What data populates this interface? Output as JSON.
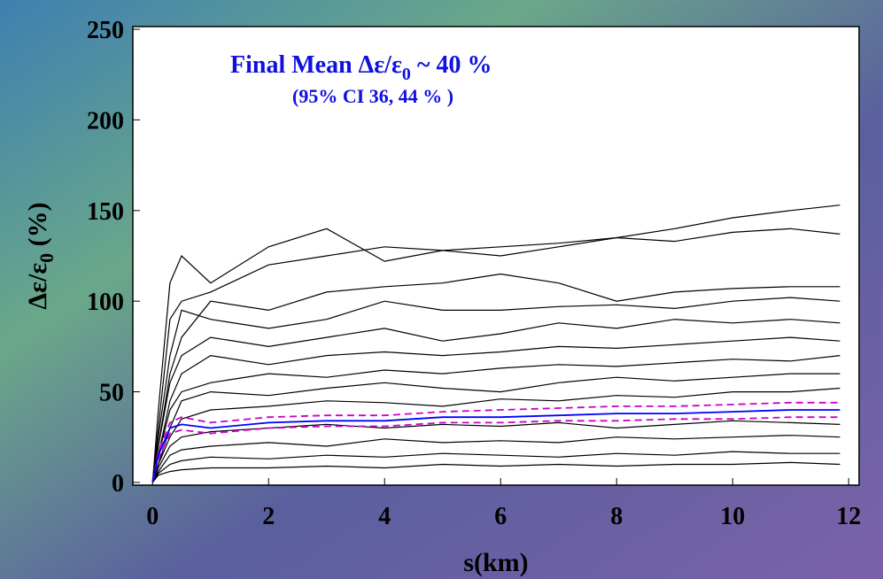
{
  "chart_data": {
    "type": "line",
    "annotations": [
      [
        "Final Mean Δε/ε",
        "0",
        " ~  40 %"
      ],
      [
        "(95% CI  36,  44 % )"
      ]
    ],
    "ylabel": [
      "Δε/ε",
      "0",
      " (%)"
    ],
    "xlabel": "s(km)",
    "x": [
      0,
      0.1,
      0.3,
      0.5,
      1,
      2,
      3,
      4,
      5,
      6,
      7,
      8,
      9,
      10,
      11,
      11.85
    ],
    "xlim": [
      -0.34,
      12.18
    ],
    "xticks": [
      0,
      2,
      4,
      6,
      8,
      10,
      12
    ],
    "ylim": [
      -1.5,
      251.5
    ],
    "yticks": [
      0,
      50,
      100,
      150,
      200,
      250
    ],
    "series": [
      {
        "color": "#000000",
        "values": [
          0,
          40,
          110,
          125,
          110,
          130,
          140,
          122,
          128,
          125,
          130,
          135,
          140,
          146,
          150,
          153
        ]
      },
      {
        "color": "#000000",
        "values": [
          0,
          30,
          90,
          100,
          105,
          120,
          125,
          130,
          128,
          130,
          132,
          135,
          133,
          138,
          140,
          137
        ]
      },
      {
        "color": "#000000",
        "values": [
          0,
          20,
          60,
          80,
          100,
          95,
          105,
          108,
          110,
          115,
          110,
          100,
          105,
          107,
          108,
          108
        ]
      },
      {
        "color": "#000000",
        "values": [
          0,
          25,
          70,
          95,
          90,
          85,
          90,
          100,
          95,
          95,
          97,
          98,
          96,
          100,
          102,
          100
        ]
      },
      {
        "color": "#000000",
        "values": [
          0,
          20,
          55,
          70,
          80,
          75,
          80,
          85,
          78,
          82,
          88,
          85,
          90,
          88,
          90,
          88
        ]
      },
      {
        "color": "#000000",
        "values": [
          0,
          15,
          45,
          60,
          70,
          65,
          70,
          72,
          70,
          72,
          75,
          74,
          76,
          78,
          80,
          78
        ]
      },
      {
        "color": "#000000",
        "values": [
          0,
          15,
          40,
          50,
          55,
          60,
          58,
          62,
          60,
          63,
          65,
          64,
          66,
          68,
          67,
          70
        ]
      },
      {
        "color": "#000000",
        "values": [
          0,
          10,
          30,
          45,
          50,
          48,
          52,
          55,
          52,
          50,
          55,
          58,
          56,
          58,
          60,
          60
        ]
      },
      {
        "color": "#000000",
        "values": [
          0,
          10,
          25,
          35,
          40,
          42,
          45,
          44,
          42,
          46,
          45,
          48,
          47,
          50,
          50,
          52
        ]
      },
      {
        "color": "#000000",
        "values": [
          0,
          8,
          20,
          25,
          28,
          30,
          32,
          30,
          32,
          31,
          33,
          30,
          32,
          34,
          33,
          32
        ]
      },
      {
        "color": "#000000",
        "values": [
          0,
          6,
          15,
          18,
          20,
          22,
          20,
          24,
          22,
          23,
          22,
          25,
          24,
          25,
          26,
          25
        ]
      },
      {
        "color": "#000000",
        "values": [
          0,
          5,
          10,
          12,
          14,
          13,
          15,
          14,
          16,
          15,
          14,
          16,
          15,
          17,
          16,
          16
        ]
      },
      {
        "color": "#000000",
        "values": [
          0,
          4,
          6,
          7,
          8,
          8,
          9,
          8,
          10,
          9,
          10,
          9,
          10,
          10,
          11,
          10
        ]
      },
      {
        "color": "#cc00cc",
        "dashed": true,
        "values": [
          0,
          17,
          33,
          36,
          33,
          36,
          37,
          37,
          39,
          40,
          41,
          42,
          42,
          43,
          44,
          44
        ]
      },
      {
        "color": "#cc00cc",
        "dashed": true,
        "values": [
          0,
          13,
          27,
          29,
          27,
          30,
          31,
          31,
          33,
          33,
          34,
          34,
          35,
          35,
          36,
          36
        ]
      },
      {
        "color": "#0000ff",
        "values": [
          0,
          15,
          30,
          32,
          30,
          33,
          34,
          34,
          36,
          36,
          37,
          38,
          38,
          39,
          40,
          40
        ]
      }
    ]
  }
}
